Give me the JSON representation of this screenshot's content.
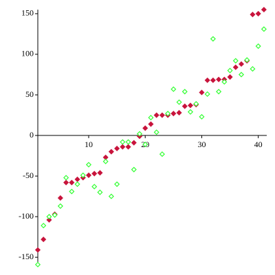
{
  "chart_data": {
    "type": "scatter",
    "x": [
      1,
      2,
      3,
      4,
      5,
      6,
      7,
      8,
      9,
      10,
      11,
      12,
      13,
      14,
      15,
      16,
      17,
      18,
      19,
      20,
      21,
      22,
      23,
      24,
      25,
      26,
      27,
      28,
      29,
      30,
      31,
      32,
      33,
      34,
      35,
      36,
      37,
      38,
      39,
      40,
      41
    ],
    "series": [
      {
        "color": "#c8143c",
        "filled": true,
        "values": [
          -141,
          -128,
          -104,
          -97,
          -77,
          -58,
          -58,
          -54,
          -52,
          -49,
          -47,
          -46,
          -27,
          -20,
          -16,
          -14,
          -14,
          -9,
          -1,
          9,
          14,
          25,
          25,
          25,
          27,
          28,
          36,
          37,
          38,
          53,
          68,
          68,
          69,
          69,
          72,
          84,
          88,
          92,
          149,
          150,
          155
        ]
      },
      {
        "color": "#33ff33",
        "filled": false,
        "values": [
          -159,
          -111,
          -100,
          -98,
          -87,
          -52,
          -69,
          -60,
          -49,
          -36,
          -63,
          -70,
          -32,
          -75,
          -60,
          -8,
          -8,
          -42,
          2,
          -11,
          22,
          4,
          -23,
          27,
          57,
          41,
          54,
          29,
          39,
          23,
          51,
          119,
          54,
          66,
          80,
          92,
          75,
          93,
          82,
          110,
          131
        ]
      }
    ],
    "xlim": [
      1,
      41.5
    ],
    "ylim": [
      -160,
      155
    ],
    "xticks": [
      10,
      20,
      30,
      40
    ],
    "yticks": [
      -150,
      -100,
      -50,
      0,
      50,
      100,
      150
    ]
  }
}
